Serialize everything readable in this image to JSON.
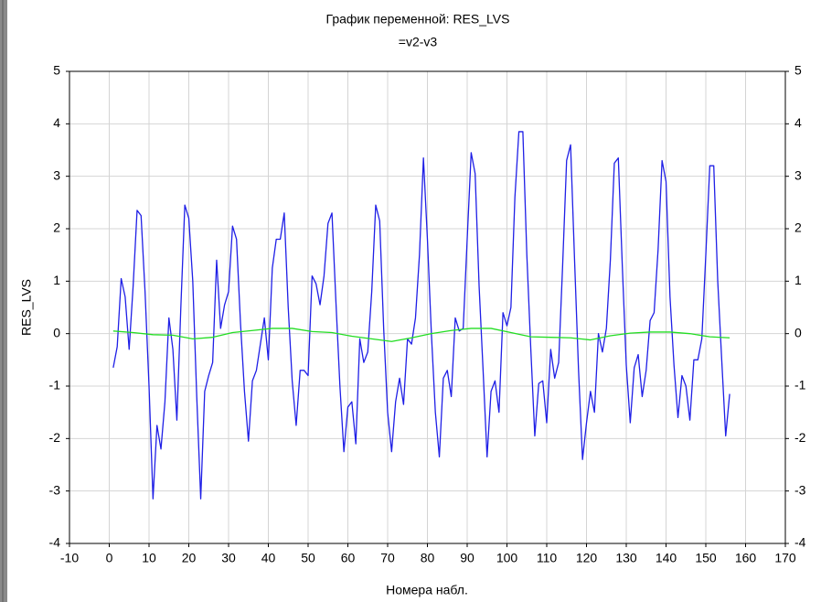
{
  "chart_data": {
    "type": "line",
    "title": "График переменной: RES_LVS",
    "subtitle": "=v2-v3",
    "x_label": "Номера набл.",
    "y_label": "RES_LVS",
    "xlim": [
      -10,
      170
    ],
    "xticks": [
      -10,
      0,
      10,
      20,
      30,
      40,
      50,
      60,
      70,
      80,
      90,
      100,
      110,
      120,
      130,
      140,
      150,
      160,
      170
    ],
    "ylim": [
      -4,
      5
    ],
    "yticks": [
      -4,
      -3,
      -2,
      -1,
      0,
      1,
      2,
      3,
      4,
      5
    ],
    "y2lim": [
      -4,
      5
    ],
    "y2ticks": [
      -4,
      -3,
      -2,
      -1,
      0,
      1,
      2,
      3,
      4,
      5
    ],
    "grid": true,
    "x": [
      1,
      2,
      3,
      4,
      5,
      6,
      7,
      8,
      9,
      10,
      11,
      12,
      13,
      14,
      15,
      16,
      17,
      18,
      19,
      20,
      21,
      22,
      23,
      24,
      25,
      26,
      27,
      28,
      29,
      30,
      31,
      32,
      33,
      34,
      35,
      36,
      37,
      38,
      39,
      40,
      41,
      42,
      43,
      44,
      45,
      46,
      47,
      48,
      49,
      50,
      51,
      52,
      53,
      54,
      55,
      56,
      57,
      58,
      59,
      60,
      61,
      62,
      63,
      64,
      65,
      66,
      67,
      68,
      69,
      70,
      71,
      72,
      73,
      74,
      75,
      76,
      77,
      78,
      79,
      80,
      81,
      82,
      83,
      84,
      85,
      86,
      87,
      88,
      89,
      90,
      91,
      92,
      93,
      94,
      95,
      96,
      97,
      98,
      99,
      100,
      101,
      102,
      103,
      104,
      105,
      106,
      107,
      108,
      109,
      110,
      111,
      112,
      113,
      114,
      115,
      116,
      117,
      118,
      119,
      120,
      121,
      122,
      123,
      124,
      125,
      126,
      127,
      128,
      129,
      130,
      131,
      132,
      133,
      134,
      135,
      136,
      137,
      138,
      139,
      140,
      141,
      142,
      143,
      144,
      145,
      146,
      147,
      148,
      149,
      150,
      151,
      152,
      153,
      154,
      155,
      156
    ],
    "series": [
      {
        "color": "#1f1fe6",
        "values": [
          -0.65,
          -0.25,
          1.05,
          0.7,
          -0.3,
          0.9,
          2.35,
          2.25,
          0.8,
          -1.0,
          -3.15,
          -1.75,
          -2.2,
          -1.3,
          0.3,
          -0.3,
          -1.65,
          0.5,
          2.45,
          2.2,
          1.0,
          -1.2,
          -3.15,
          -1.1,
          -0.8,
          -0.55,
          1.4,
          0.1,
          0.55,
          0.8,
          2.05,
          1.8,
          0.2,
          -1.1,
          -2.05,
          -0.9,
          -0.7,
          -0.2,
          0.3,
          -0.5,
          1.25,
          1.8,
          1.8,
          2.3,
          0.5,
          -0.9,
          -1.75,
          -0.7,
          -0.7,
          -0.8,
          1.1,
          0.95,
          0.55,
          1.1,
          2.1,
          2.3,
          0.6,
          -1.0,
          -2.25,
          -1.4,
          -1.3,
          -2.1,
          -0.1,
          -0.55,
          -0.35,
          0.8,
          2.45,
          2.15,
          0.1,
          -1.5,
          -2.25,
          -1.3,
          -0.85,
          -1.35,
          -0.1,
          -0.2,
          0.3,
          1.5,
          3.35,
          1.8,
          0.0,
          -1.5,
          -2.35,
          -0.85,
          -0.7,
          -1.2,
          0.3,
          0.05,
          0.1,
          1.8,
          3.45,
          3.05,
          0.9,
          -0.7,
          -2.35,
          -1.1,
          -0.9,
          -1.5,
          0.4,
          0.15,
          0.5,
          2.6,
          3.85,
          3.85,
          1.5,
          -0.3,
          -1.95,
          -0.95,
          -0.9,
          -1.7,
          -0.3,
          -0.85,
          -0.55,
          1.3,
          3.3,
          3.6,
          1.4,
          -0.7,
          -2.4,
          -1.7,
          -1.1,
          -1.5,
          0.0,
          -0.35,
          0.1,
          1.4,
          3.25,
          3.35,
          1.3,
          -0.6,
          -1.7,
          -0.65,
          -0.4,
          -1.2,
          -0.7,
          0.25,
          0.4,
          1.6,
          3.3,
          2.9,
          0.7,
          -0.6,
          -1.6,
          -0.8,
          -1.0,
          -1.65,
          -0.5,
          -0.5,
          -0.1,
          1.5,
          3.2,
          3.2,
          1.0,
          -0.5,
          -1.95,
          -1.15
        ]
      },
      {
        "color": "#22dd22",
        "x": [
          1,
          6,
          11,
          16,
          21,
          26,
          31,
          36,
          41,
          46,
          51,
          56,
          61,
          66,
          71,
          76,
          81,
          86,
          91,
          96,
          101,
          106,
          111,
          116,
          121,
          126,
          131,
          136,
          141,
          146,
          151,
          156
        ],
        "values": [
          0.05,
          0.02,
          -0.02,
          -0.03,
          -0.1,
          -0.07,
          0.02,
          0.06,
          0.1,
          0.1,
          0.04,
          0.02,
          -0.05,
          -0.1,
          -0.15,
          -0.08,
          0.0,
          0.06,
          0.1,
          0.1,
          0.02,
          -0.06,
          -0.07,
          -0.08,
          -0.12,
          -0.04,
          0.01,
          0.03,
          0.03,
          0.0,
          -0.06,
          -0.08
        ]
      }
    ]
  }
}
